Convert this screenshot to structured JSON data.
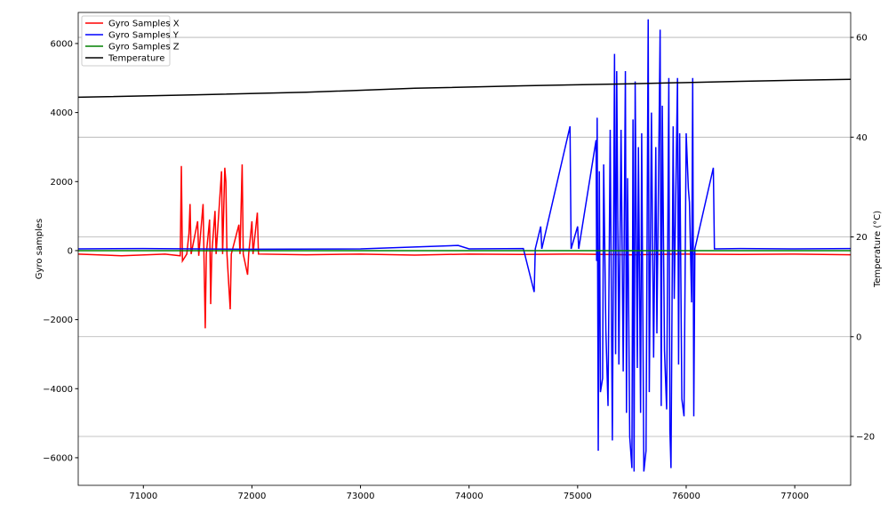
{
  "chart_data": {
    "type": "line",
    "ylabel": "Gyro samples",
    "y2label": "Temperature (°C)",
    "xlim": [
      70400,
      77515
    ],
    "ylim": [
      -6800,
      6900
    ],
    "y2lim": [
      -29.8,
      65
    ],
    "xticks": [
      71000,
      72000,
      73000,
      74000,
      75000,
      76000,
      77000
    ],
    "yticks": [
      {
        "value": -6000,
        "label": "−6000"
      },
      {
        "value": -4000,
        "label": "−4000"
      },
      {
        "value": -2000,
        "label": "−2000"
      },
      0,
      2000,
      4000,
      6000
    ],
    "y2ticks": [
      {
        "value": -20,
        "label": "−20"
      },
      0,
      20,
      40,
      60
    ],
    "grid": true,
    "legend": "upper left",
    "series": [
      {
        "name": "Gyro Samples X",
        "color": "#ff0000",
        "x": [
          70400,
          70800,
          71200,
          71340,
          71350,
          71360,
          71400,
          71420,
          71430,
          71440,
          71500,
          71510,
          71550,
          71570,
          71580,
          71610,
          71620,
          71630,
          71660,
          71670,
          71720,
          71730,
          71750,
          71760,
          71770,
          71800,
          71810,
          71880,
          71890,
          71910,
          71920,
          71960,
          71970,
          72000,
          72010,
          72050,
          72060,
          72500,
          73000,
          73500,
          74000,
          74500,
          75000,
          75500,
          76000,
          76500,
          77000,
          77515
        ],
        "values": [
          -100,
          -150,
          -100,
          -150,
          2450,
          -300,
          -100,
          500,
          1350,
          -100,
          850,
          -150,
          1350,
          -2250,
          -100,
          900,
          -1550,
          -100,
          1150,
          -100,
          2300,
          -100,
          2400,
          2000,
          -100,
          -1700,
          -100,
          750,
          -100,
          2500,
          -100,
          -700,
          -100,
          850,
          -100,
          1100,
          -100,
          -120,
          -100,
          -130,
          -100,
          -110,
          -100,
          -120,
          -100,
          -110,
          -100,
          -120
        ]
      },
      {
        "name": "Gyro Samples Y",
        "color": "#0000ff",
        "x": [
          70400,
          71000,
          72000,
          73000,
          73900,
          74000,
          74500,
          74600,
          74610,
          74660,
          74670,
          74930,
          74940,
          75000,
          75010,
          75170,
          75175,
          75180,
          75190,
          75200,
          75210,
          75230,
          75240,
          75260,
          75280,
          75300,
          75320,
          75340,
          75350,
          75360,
          75380,
          75400,
          75420,
          75440,
          75450,
          75460,
          75480,
          75500,
          75510,
          75520,
          75530,
          75550,
          75560,
          75580,
          75590,
          75610,
          75630,
          75650,
          75660,
          75680,
          75700,
          75720,
          75730,
          75760,
          75770,
          75780,
          75800,
          75820,
          75840,
          75850,
          75860,
          75880,
          75890,
          75920,
          75930,
          75940,
          75960,
          75980,
          76000,
          76020,
          76030,
          76050,
          76060,
          76070,
          76080,
          76250,
          76260,
          76500,
          77000,
          77515
        ],
        "values": [
          50,
          60,
          40,
          50,
          150,
          50,
          60,
          -1200,
          50,
          700,
          50,
          3600,
          50,
          700,
          50,
          3200,
          -300,
          3850,
          -5800,
          2300,
          -4100,
          -3700,
          2500,
          -2300,
          -4500,
          3500,
          -5500,
          5700,
          -3000,
          5200,
          -3300,
          3500,
          -3500,
          5200,
          -4700,
          2100,
          -5400,
          -6300,
          3800,
          -6400,
          4900,
          -3400,
          3000,
          -4700,
          3400,
          -6400,
          -5800,
          6700,
          -4100,
          4000,
          -3100,
          3000,
          -2400,
          6400,
          -4500,
          4200,
          -2900,
          -4600,
          5000,
          -5200,
          -6300,
          3600,
          -1400,
          5000,
          -3300,
          3400,
          -4300,
          -4800,
          3400,
          1800,
          1400,
          -1500,
          5000,
          -4800,
          50,
          2400,
          50,
          60,
          50,
          60
        ]
      },
      {
        "name": "Gyro Samples Z",
        "color": "#008000",
        "x": [
          70400,
          74000,
          77515
        ],
        "values": [
          0,
          0,
          0
        ]
      },
      {
        "name": "Temperature",
        "color": "#000000",
        "axis": "y2",
        "x": [
          70400,
          71500,
          72500,
          73500,
          74500,
          75500,
          76500,
          77515
        ],
        "values": [
          48,
          48.5,
          49,
          49.8,
          50.3,
          50.7,
          51.2,
          51.6
        ]
      }
    ]
  }
}
